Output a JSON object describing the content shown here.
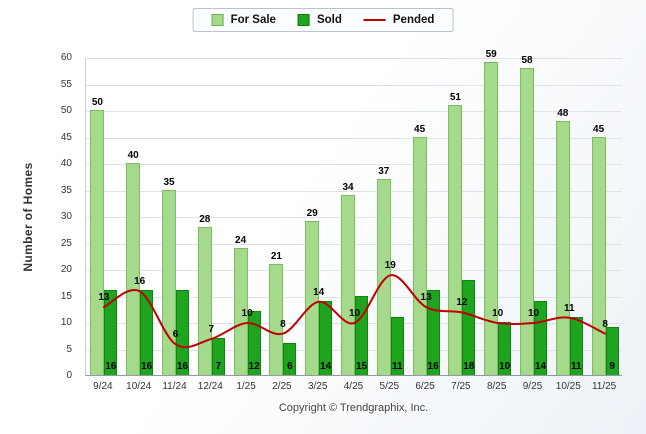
{
  "chart_data": {
    "type": "bar",
    "title": "",
    "categories": [
      "9/24",
      "10/24",
      "11/24",
      "12/24",
      "1/25",
      "2/25",
      "3/25",
      "4/25",
      "5/25",
      "6/25",
      "7/25",
      "8/25",
      "9/25",
      "10/25",
      "11/25"
    ],
    "series": [
      {
        "name": "For Sale",
        "type": "bar",
        "color": "#a5d98b",
        "border_color": "#7bbd60",
        "values": [
          50,
          40,
          35,
          28,
          24,
          21,
          29,
          34,
          37,
          45,
          51,
          59,
          58,
          48,
          45
        ]
      },
      {
        "name": "Sold",
        "type": "bar",
        "color": "#1fa41f",
        "border_color": "#0f8510",
        "values": [
          16,
          16,
          16,
          7,
          12,
          6,
          14,
          15,
          11,
          16,
          18,
          10,
          14,
          11,
          9
        ]
      },
      {
        "name": "Pended",
        "type": "line",
        "color": "#c00000",
        "values": [
          13,
          16,
          6,
          7,
          10,
          8,
          14,
          10,
          19,
          13,
          12,
          10,
          10,
          11,
          8
        ]
      }
    ],
    "xlabel": "",
    "ylabel": "Number of Homes",
    "ylim": [
      0,
      60
    ],
    "ytick_step": 5,
    "grid": true,
    "legend_position": "top"
  },
  "footer": {
    "copyright": "Copyright © Trendgraphix, Inc."
  }
}
